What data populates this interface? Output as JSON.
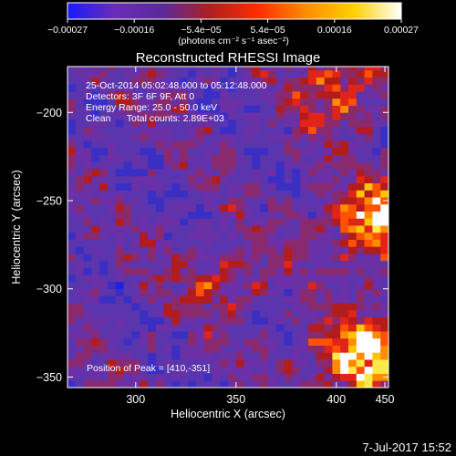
{
  "chart_data": {
    "type": "heatmap",
    "title": "Reconstructed RHESSI Image",
    "xlabel": "Heliocentric X (arcsec)",
    "ylabel": "Heliocentric Y (arcsec)",
    "xlim": [
      266,
      426
    ],
    "ylim": [
      -356,
      -174
    ],
    "x_ticks": [
      {
        "value": 300,
        "label": "300"
      },
      {
        "value": 350,
        "label": "350"
      },
      {
        "value": 400,
        "label": "400"
      },
      {
        "value": 450,
        "label": "450"
      }
    ],
    "y_ticks": [
      {
        "value": -200,
        "label": "−200"
      },
      {
        "value": -250,
        "label": "−250"
      },
      {
        "value": -300,
        "label": "−300"
      },
      {
        "value": -350,
        "label": "−350"
      }
    ],
    "colorbar": {
      "min": -0.00027,
      "max": 0.00027,
      "tick_labels": [
        "−0.00027",
        "−0.00016",
        "−5.4e−05",
        "5.4e−05",
        "0.00016",
        "0.00027"
      ],
      "unit_label": "(photons cm⁻² s⁻¹ asec⁻²)",
      "colors": [
        "#1a1aff",
        "#6a2cb8",
        "#5a2a9a",
        "#b01f1f",
        "#ff2d00",
        "#ff8c00",
        "#ffd000",
        "#ffffff"
      ]
    },
    "annotations": [
      "25-Oct-2014 05:02:48.000 to 05:12:48.000",
      "Detectors: 3F 6F 9F, Att 0",
      "Energy Range: 25.0 - 50.0 keV",
      "Clean      Total counts: 2.89E+03"
    ],
    "peak_label": "Position of Peak = [410,-351]",
    "peak": {
      "x": 410,
      "y": -351
    },
    "hot_regions": [
      {
        "x": 412,
        "y": -338,
        "strength": 1.0
      },
      {
        "x": 418,
        "y": -262,
        "strength": 0.85
      },
      {
        "x": 402,
        "y": -186,
        "strength": 0.55
      },
      {
        "x": 344,
        "y": -293,
        "strength": 0.35
      }
    ],
    "date_stamp": "7-Jul-2017 15:52"
  }
}
